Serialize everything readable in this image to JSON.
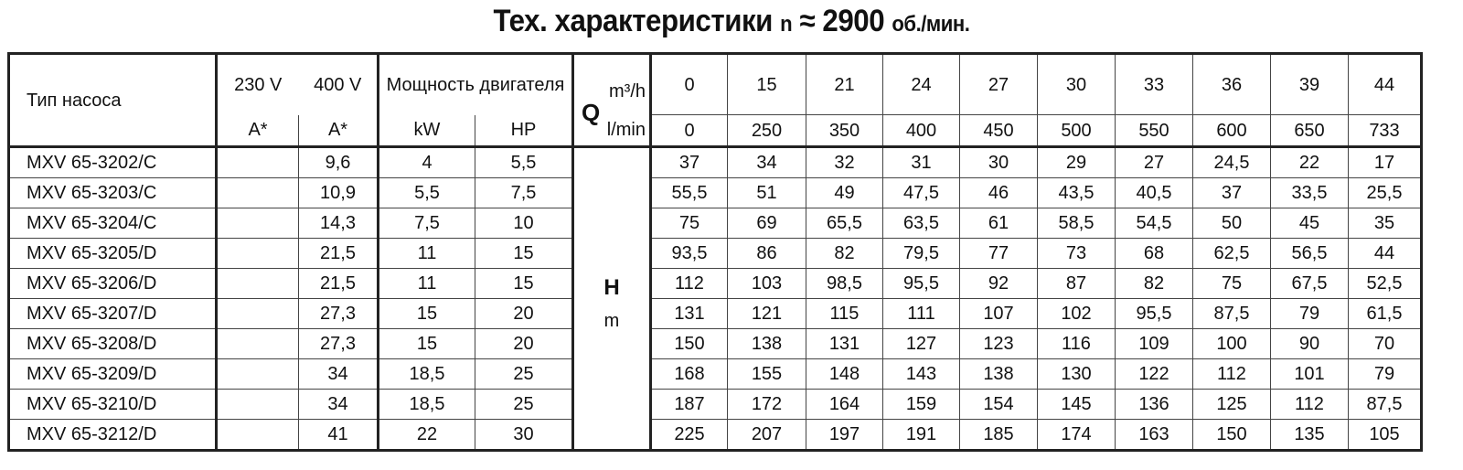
{
  "title": {
    "main": "Тех. характеристики",
    "n": "n",
    "approx_speed": "≈ 2900",
    "unit": "об./мин."
  },
  "header": {
    "pump_type": "Тип насоса",
    "v230": "230 V",
    "v400": "400 V",
    "amp230": "A*",
    "amp400": "A*",
    "power": "Мощность двигателя",
    "kw": "kW",
    "hp": "HP",
    "q_label": "Q",
    "q_unit_m3h": "m³/h",
    "q_unit_lmin": "l/min",
    "h_label": "H",
    "h_unit": "m",
    "flow_m3h": [
      "0",
      "15",
      "21",
      "24",
      "27",
      "30",
      "33",
      "36",
      "39",
      "44"
    ],
    "flow_lmin": [
      "0",
      "250",
      "350",
      "400",
      "450",
      "500",
      "550",
      "600",
      "650",
      "733"
    ]
  },
  "rows": [
    {
      "type": "MXV 65-3202/C",
      "a230": "",
      "a400": "9,6",
      "kw": "4",
      "hp": "5,5",
      "h": [
        "37",
        "34",
        "32",
        "31",
        "30",
        "29",
        "27",
        "24,5",
        "22",
        "17"
      ]
    },
    {
      "type": "MXV 65-3203/C",
      "a230": "",
      "a400": "10,9",
      "kw": "5,5",
      "hp": "7,5",
      "h": [
        "55,5",
        "51",
        "49",
        "47,5",
        "46",
        "43,5",
        "40,5",
        "37",
        "33,5",
        "25,5"
      ]
    },
    {
      "type": "MXV 65-3204/C",
      "a230": "",
      "a400": "14,3",
      "kw": "7,5",
      "hp": "10",
      "h": [
        "75",
        "69",
        "65,5",
        "63,5",
        "61",
        "58,5",
        "54,5",
        "50",
        "45",
        "35"
      ]
    },
    {
      "type": "MXV 65-3205/D",
      "a230": "",
      "a400": "21,5",
      "kw": "11",
      "hp": "15",
      "h": [
        "93,5",
        "86",
        "82",
        "79,5",
        "77",
        "73",
        "68",
        "62,5",
        "56,5",
        "44"
      ]
    },
    {
      "type": "MXV 65-3206/D",
      "a230": "",
      "a400": "21,5",
      "kw": "11",
      "hp": "15",
      "h": [
        "112",
        "103",
        "98,5",
        "95,5",
        "92",
        "87",
        "82",
        "75",
        "67,5",
        "52,5"
      ]
    },
    {
      "type": "MXV 65-3207/D",
      "a230": "",
      "a400": "27,3",
      "kw": "15",
      "hp": "20",
      "h": [
        "131",
        "121",
        "115",
        "111",
        "107",
        "102",
        "95,5",
        "87,5",
        "79",
        "61,5"
      ]
    },
    {
      "type": "MXV 65-3208/D",
      "a230": "",
      "a400": "27,3",
      "kw": "15",
      "hp": "20",
      "h": [
        "150",
        "138",
        "131",
        "127",
        "123",
        "116",
        "109",
        "100",
        "90",
        "70"
      ]
    },
    {
      "type": "MXV 65-3209/D",
      "a230": "",
      "a400": "34",
      "kw": "18,5",
      "hp": "25",
      "h": [
        "168",
        "155",
        "148",
        "143",
        "138",
        "130",
        "122",
        "112",
        "101",
        "79"
      ]
    },
    {
      "type": "MXV 65-3210/D",
      "a230": "",
      "a400": "34",
      "kw": "18,5",
      "hp": "25",
      "h": [
        "187",
        "172",
        "164",
        "159",
        "154",
        "145",
        "136",
        "125",
        "112",
        "87,5"
      ]
    },
    {
      "type": "MXV 65-3212/D",
      "a230": "",
      "a400": "41",
      "kw": "22",
      "hp": "30",
      "h": [
        "225",
        "207",
        "197",
        "191",
        "185",
        "174",
        "163",
        "150",
        "135",
        "105"
      ]
    }
  ]
}
